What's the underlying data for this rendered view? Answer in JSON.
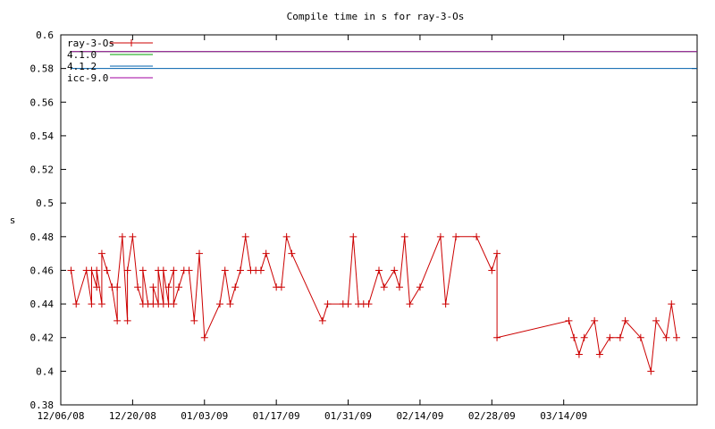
{
  "chart_data": {
    "type": "line",
    "title": "Compile time in s for ray-3-Os",
    "xlabel": "",
    "ylabel": "s",
    "ylim": [
      0.38,
      0.6
    ],
    "yticks": [
      "0.38",
      "0.4",
      "0.42",
      "0.44",
      "0.46",
      "0.48",
      "0.5",
      "0.52",
      "0.54",
      "0.56",
      "0.58",
      "0.6"
    ],
    "xlim": [
      "2008-12-06",
      "2009-04-09"
    ],
    "xticks": [
      {
        "label": "12/06/08",
        "date": "2008-12-06"
      },
      {
        "label": "12/20/08",
        "date": "2008-12-20"
      },
      {
        "label": "01/03/09",
        "date": "2009-01-03"
      },
      {
        "label": "01/17/09",
        "date": "2009-01-17"
      },
      {
        "label": "01/31/09",
        "date": "2009-01-31"
      },
      {
        "label": "02/14/09",
        "date": "2009-02-14"
      },
      {
        "label": "02/28/09",
        "date": "2009-02-28"
      },
      {
        "label": "03/14/09",
        "date": "2009-03-14"
      }
    ],
    "legend_position": "top-left",
    "grid": false,
    "series": [
      {
        "name": "ray-3-Os",
        "color": "#cc0000",
        "marker": "plus",
        "points": [
          [
            "2008-12-08",
            0.46
          ],
          [
            "2008-12-09",
            0.44
          ],
          [
            "2008-12-11",
            0.46
          ],
          [
            "2008-12-12",
            0.44
          ],
          [
            "2008-12-12",
            0.46
          ],
          [
            "2008-12-13",
            0.45
          ],
          [
            "2008-12-13",
            0.46
          ],
          [
            "2008-12-14",
            0.44
          ],
          [
            "2008-12-14",
            0.47
          ],
          [
            "2008-12-15",
            0.46
          ],
          [
            "2008-12-16",
            0.45
          ],
          [
            "2008-12-17",
            0.43
          ],
          [
            "2008-12-17",
            0.45
          ],
          [
            "2008-12-18",
            0.48
          ],
          [
            "2008-12-19",
            0.43
          ],
          [
            "2008-12-19",
            0.46
          ],
          [
            "2008-12-20",
            0.48
          ],
          [
            "2008-12-21",
            0.45
          ],
          [
            "2008-12-22",
            0.44
          ],
          [
            "2008-12-22",
            0.46
          ],
          [
            "2008-12-23",
            0.44
          ],
          [
            "2008-12-24",
            0.44
          ],
          [
            "2008-12-24",
            0.45
          ],
          [
            "2008-12-25",
            0.44
          ],
          [
            "2008-12-25",
            0.46
          ],
          [
            "2008-12-26",
            0.44
          ],
          [
            "2008-12-26",
            0.46
          ],
          [
            "2008-12-27",
            0.44
          ],
          [
            "2008-12-27",
            0.45
          ],
          [
            "2008-12-28",
            0.46
          ],
          [
            "2008-12-28",
            0.44
          ],
          [
            "2008-12-29",
            0.45
          ],
          [
            "2008-12-30",
            0.46
          ],
          [
            "2008-12-31",
            0.46
          ],
          [
            "2009-01-01",
            0.43
          ],
          [
            "2009-01-02",
            0.47
          ],
          [
            "2009-01-03",
            0.42
          ],
          [
            "2009-01-06",
            0.44
          ],
          [
            "2009-01-07",
            0.46
          ],
          [
            "2009-01-08",
            0.44
          ],
          [
            "2009-01-09",
            0.45
          ],
          [
            "2009-01-10",
            0.46
          ],
          [
            "2009-01-11",
            0.48
          ],
          [
            "2009-01-12",
            0.46
          ],
          [
            "2009-01-13",
            0.46
          ],
          [
            "2009-01-14",
            0.46
          ],
          [
            "2009-01-15",
            0.47
          ],
          [
            "2009-01-17",
            0.45
          ],
          [
            "2009-01-18",
            0.45
          ],
          [
            "2009-01-19",
            0.48
          ],
          [
            "2009-01-20",
            0.47
          ],
          [
            "2009-01-26",
            0.43
          ],
          [
            "2009-01-27",
            0.44
          ],
          [
            "2009-01-30",
            0.44
          ],
          [
            "2009-01-31",
            0.44
          ],
          [
            "2009-02-01",
            0.48
          ],
          [
            "2009-02-02",
            0.44
          ],
          [
            "2009-02-03",
            0.44
          ],
          [
            "2009-02-04",
            0.44
          ],
          [
            "2009-02-06",
            0.46
          ],
          [
            "2009-02-07",
            0.45
          ],
          [
            "2009-02-09",
            0.46
          ],
          [
            "2009-02-10",
            0.45
          ],
          [
            "2009-02-11",
            0.48
          ],
          [
            "2009-02-12",
            0.44
          ],
          [
            "2009-02-14",
            0.45
          ],
          [
            "2009-02-18",
            0.48
          ],
          [
            "2009-02-19",
            0.44
          ],
          [
            "2009-02-21",
            0.48
          ],
          [
            "2009-02-25",
            0.48
          ],
          [
            "2009-02-28",
            0.46
          ],
          [
            "2009-02-29",
            0.47
          ],
          [
            "2009-03-01",
            0.42
          ],
          [
            "2009-03-15",
            0.43
          ],
          [
            "2009-03-16",
            0.42
          ],
          [
            "2009-03-17",
            0.41
          ],
          [
            "2009-03-18",
            0.42
          ],
          [
            "2009-03-20",
            0.43
          ],
          [
            "2009-03-21",
            0.41
          ],
          [
            "2009-03-23",
            0.42
          ],
          [
            "2009-03-25",
            0.42
          ],
          [
            "2009-03-26",
            0.43
          ],
          [
            "2009-03-29",
            0.42
          ],
          [
            "2009-03-31",
            0.4
          ],
          [
            "2009-04-01",
            0.43
          ],
          [
            "2009-04-03",
            0.42
          ],
          [
            "2009-04-04",
            0.44
          ],
          [
            "2009-04-05",
            0.42
          ]
        ]
      },
      {
        "name": "4.1.0",
        "color": "#00a000",
        "points": [
          [
            "2008-12-08",
            0.59
          ],
          [
            "2009-04-09",
            0.59
          ]
        ]
      },
      {
        "name": "4.1.2",
        "color": "#0060ad",
        "points": [
          [
            "2008-12-08",
            0.58
          ],
          [
            "2009-04-09",
            0.58
          ]
        ]
      },
      {
        "name": "icc-9.0",
        "color": "#a000a0",
        "points": [
          [
            "2008-12-08",
            0.59
          ],
          [
            "2009-04-09",
            0.59
          ]
        ]
      }
    ]
  }
}
